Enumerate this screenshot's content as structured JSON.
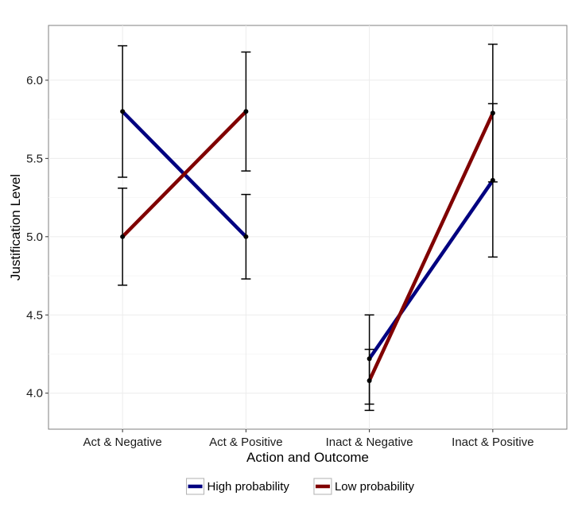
{
  "chart_data": {
    "type": "line",
    "title": "",
    "xlabel": "Action and Outcome",
    "ylabel": "Justification Level",
    "categories": [
      "Act & Negative",
      "Act & Positive",
      "Inact & Negative",
      "Inact & Positive"
    ],
    "ylim": [
      3.77,
      6.35
    ],
    "yticks": [
      4.0,
      4.5,
      5.0,
      5.5,
      6.0
    ],
    "ytick_labels": [
      "4.0",
      "4.5",
      "5.0",
      "5.5",
      "6.0"
    ],
    "grid": true,
    "legend_position": "bottom",
    "line_groups": [
      [
        0,
        1
      ],
      [
        2,
        3
      ]
    ],
    "series": [
      {
        "name": "High probability",
        "color": "#000080",
        "values": [
          5.8,
          5.0,
          4.22,
          5.36
        ],
        "error_low": [
          5.38,
          4.73,
          3.93,
          4.87
        ],
        "error_high": [
          6.22,
          5.27,
          4.5,
          5.85
        ]
      },
      {
        "name": "Low probability",
        "color": "#800000",
        "values": [
          5.0,
          5.8,
          4.08,
          5.79
        ],
        "error_low": [
          4.69,
          5.42,
          3.89,
          5.35
        ],
        "error_high": [
          5.31,
          6.18,
          4.28,
          6.23
        ]
      }
    ]
  }
}
